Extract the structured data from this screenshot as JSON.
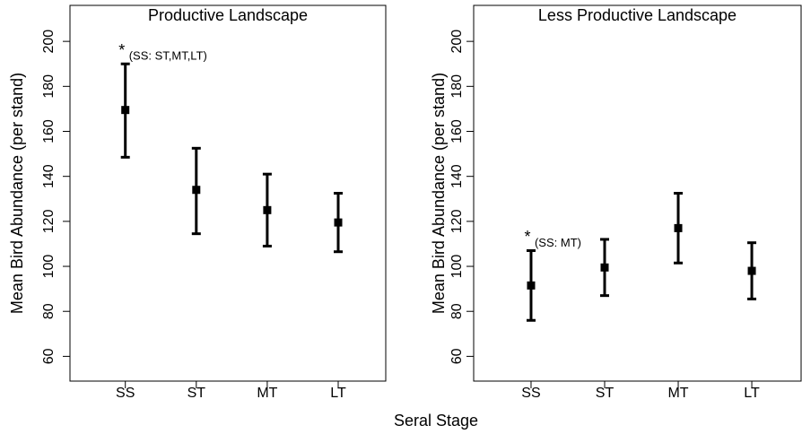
{
  "x_label": "Seral Stage",
  "chart_data": [
    {
      "type": "errorbar",
      "title": "Productive Landscape",
      "y_label": "Mean Bird Abundance (per stand)",
      "categories": [
        "SS",
        "ST",
        "MT",
        "LT"
      ],
      "values": [
        169.5,
        134,
        125,
        119.5
      ],
      "lower": [
        148.5,
        114.5,
        109,
        106.5
      ],
      "upper": [
        190,
        152.5,
        141,
        132.5
      ],
      "ylim": [
        49,
        216
      ],
      "yticks": [
        60,
        80,
        100,
        120,
        140,
        160,
        180,
        200
      ],
      "color": "#000000",
      "annotation_mark": "*",
      "annotation": "(SS: ST,MT,LT)"
    },
    {
      "type": "errorbar",
      "title": "Less Productive Landscape",
      "y_label": "Mean Bird Abundance (per stand)",
      "categories": [
        "SS",
        "ST",
        "MT",
        "LT"
      ],
      "values": [
        91.5,
        99.5,
        117,
        98
      ],
      "lower": [
        76,
        87,
        101.5,
        85.5
      ],
      "upper": [
        107,
        112,
        132.5,
        110.5
      ],
      "ylim": [
        49,
        216
      ],
      "yticks": [
        60,
        80,
        100,
        120,
        140,
        160,
        180,
        200
      ],
      "color": "#000000",
      "annotation_mark": "*",
      "annotation": "(SS: MT)"
    }
  ]
}
